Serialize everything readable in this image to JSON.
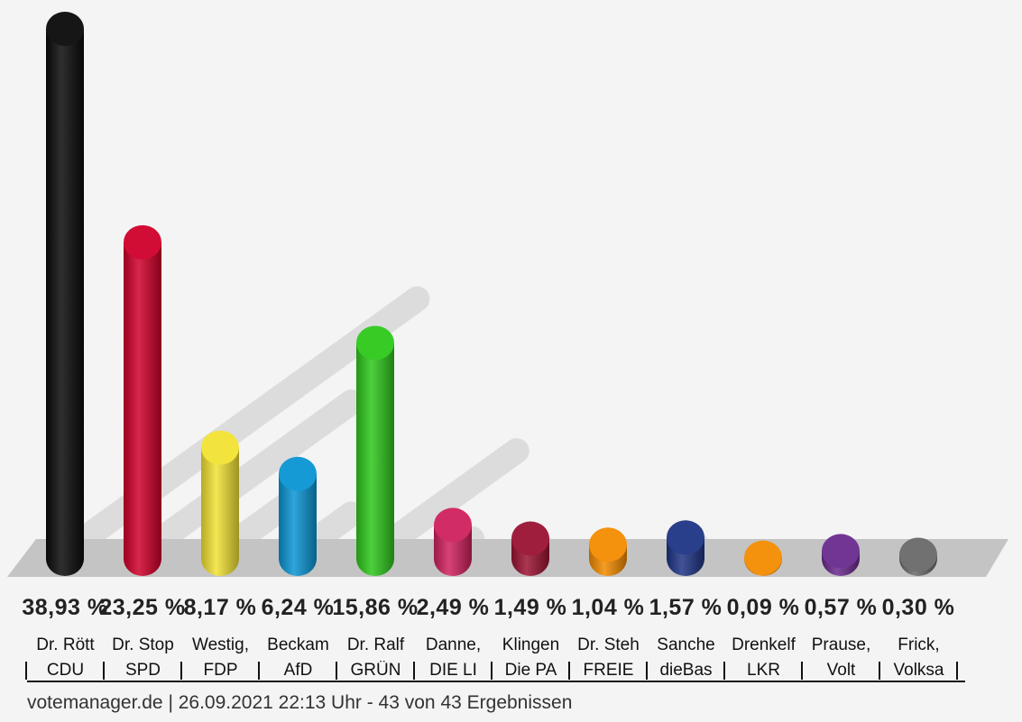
{
  "chart_data": {
    "type": "bar",
    "categories": [
      "CDU",
      "SPD",
      "FDP",
      "AfD",
      "GRÜN",
      "DIE LI",
      "Die PA",
      "FREIE",
      "dieBas",
      "LKR",
      "Volt",
      "Volksa"
    ],
    "candidates": [
      "Dr. Rött",
      "Dr. Stop",
      "Westig,",
      "Beckam",
      "Dr. Ralf",
      "Danne,",
      "Klingen",
      "Dr. Steh",
      "Sanche",
      "Drenkelf",
      "Prause,",
      "Frick,"
    ],
    "values": [
      38.93,
      23.25,
      8.17,
      6.24,
      15.86,
      2.49,
      1.49,
      1.04,
      1.57,
      0.09,
      0.57,
      0.3
    ],
    "value_labels": [
      "38,93 %",
      "23,25 %",
      "8,17 %",
      "6,24 %",
      "15,86 %",
      "2,49 %",
      "1,49 %",
      "1,04 %",
      "1,57 %",
      "0,09 %",
      "0,57 %",
      "0,30 %"
    ],
    "colors": [
      "#0a0a0a",
      "#d0002a",
      "#f2e233",
      "#0a95d3",
      "#2ec81b",
      "#d0215f",
      "#9b1233",
      "#f38b00",
      "#1f3585",
      "#f38b00",
      "#6a2a8e",
      "#6a6a6a"
    ],
    "ylim": [
      0,
      40
    ]
  },
  "footer": "votemanager.de | 26.09.2021 22:13 Uhr - 43 von 43 Ergebnissen"
}
